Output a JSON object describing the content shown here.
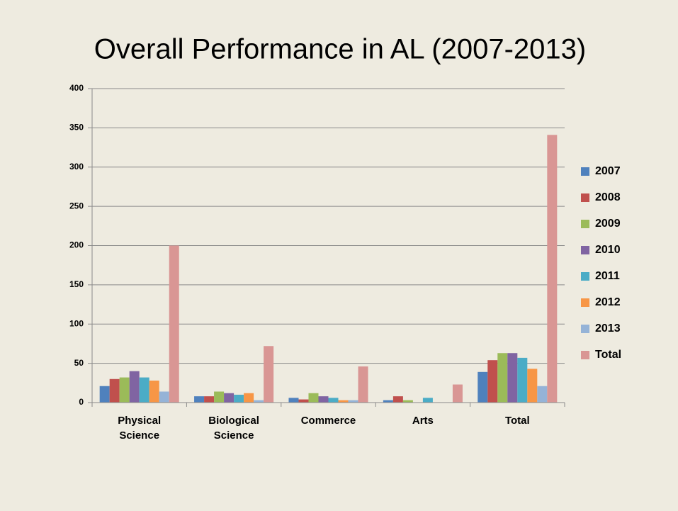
{
  "chart_data": {
    "type": "bar",
    "title": "Overall Performance in AL (2007-2013)",
    "categories": [
      "Physical Science",
      "Biological Science",
      "Commerce",
      "Arts",
      "Total"
    ],
    "series": [
      {
        "name": "2007",
        "color": "#4f81bd",
        "values": [
          21,
          8,
          6,
          3,
          39
        ]
      },
      {
        "name": "2008",
        "color": "#c0504d",
        "values": [
          30,
          8,
          4,
          8,
          54
        ]
      },
      {
        "name": "2009",
        "color": "#9bbb59",
        "values": [
          32,
          14,
          12,
          3,
          63
        ]
      },
      {
        "name": "2010",
        "color": "#8064a2",
        "values": [
          40,
          12,
          8,
          0,
          63
        ]
      },
      {
        "name": "2011",
        "color": "#4bacc6",
        "values": [
          32,
          10,
          6,
          6,
          57
        ]
      },
      {
        "name": "2012",
        "color": "#f79646",
        "values": [
          28,
          12,
          3,
          0,
          43
        ]
      },
      {
        "name": "2013",
        "color": "#95b3d7",
        "values": [
          14,
          3,
          3,
          0,
          21
        ]
      },
      {
        "name": "Total",
        "color": "#d99694",
        "values": [
          200,
          72,
          46,
          23,
          341
        ]
      }
    ],
    "ylim": [
      0,
      400
    ],
    "yticks": [
      0,
      50,
      100,
      150,
      200,
      250,
      300,
      350,
      400
    ],
    "grid": true,
    "legend": "right"
  }
}
